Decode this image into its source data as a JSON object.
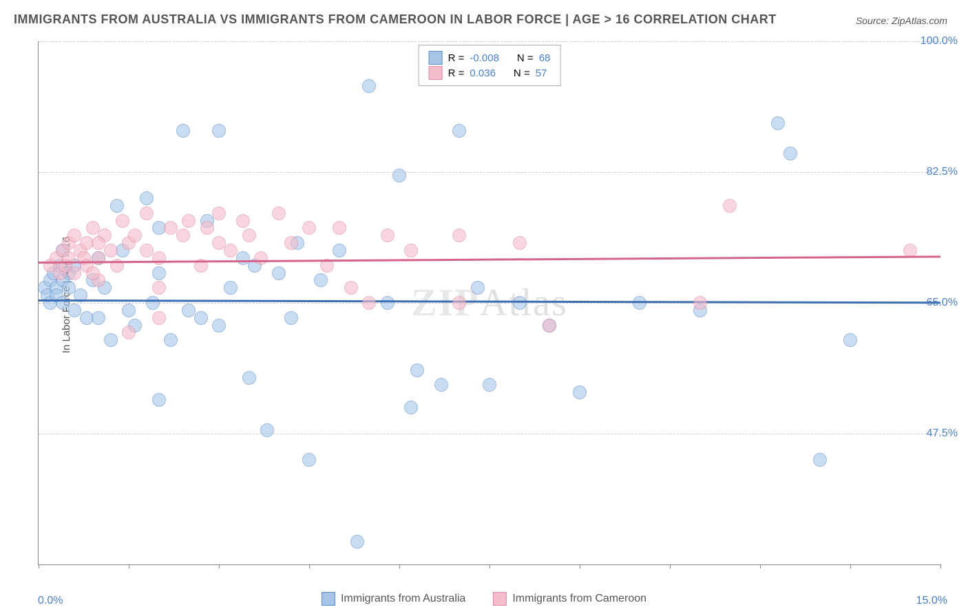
{
  "title": "IMMIGRANTS FROM AUSTRALIA VS IMMIGRANTS FROM CAMEROON IN LABOR FORCE | AGE > 16 CORRELATION CHART",
  "source": "Source: ZipAtlas.com",
  "watermark_a": "ZIP",
  "watermark_b": "Atlas",
  "chart": {
    "type": "scatter",
    "ylabel": "In Labor Force | Age > 16",
    "xlim": [
      0.0,
      15.0
    ],
    "ylim": [
      30.0,
      100.0
    ],
    "x_label_min": "0.0%",
    "x_label_max": "15.0%",
    "y_ticks": [
      47.5,
      65.0,
      82.5,
      100.0
    ],
    "y_tick_labels": [
      "47.5%",
      "65.0%",
      "82.5%",
      "100.0%"
    ],
    "x_tick_positions": [
      0,
      1.5,
      3.0,
      4.5,
      6.0,
      7.5,
      9.0,
      10.5,
      12.0,
      13.5,
      15.0
    ],
    "background_color": "#ffffff",
    "grid_color": "#cccccc",
    "point_radius": 9,
    "point_opacity": 0.6,
    "series": [
      {
        "name": "Immigrants from Australia",
        "fill_color": "#a8c5e8",
        "stroke_color": "#5b8fc9",
        "trend_color": "#3d6fb5",
        "trend_y_start": 65.5,
        "trend_y_end": 65.2,
        "R": "-0.008",
        "N": "68",
        "points": [
          [
            0.1,
            67
          ],
          [
            0.15,
            66
          ],
          [
            0.2,
            68
          ],
          [
            0.2,
            65
          ],
          [
            0.25,
            69
          ],
          [
            0.3,
            67
          ],
          [
            0.3,
            66
          ],
          [
            0.35,
            70
          ],
          [
            0.4,
            68
          ],
          [
            0.4,
            65
          ],
          [
            0.5,
            67
          ],
          [
            0.5,
            69
          ],
          [
            0.6,
            64
          ],
          [
            0.7,
            66
          ],
          [
            0.8,
            63
          ],
          [
            0.9,
            68
          ],
          [
            1.0,
            71
          ],
          [
            1.0,
            63
          ],
          [
            1.1,
            67
          ],
          [
            1.2,
            60
          ],
          [
            1.3,
            78
          ],
          [
            1.4,
            72
          ],
          [
            1.5,
            64
          ],
          [
            1.6,
            62
          ],
          [
            1.8,
            79
          ],
          [
            1.9,
            65
          ],
          [
            2.0,
            69
          ],
          [
            2.0,
            52
          ],
          [
            2.2,
            60
          ],
          [
            2.4,
            88
          ],
          [
            2.5,
            64
          ],
          [
            2.7,
            63
          ],
          [
            2.8,
            76
          ],
          [
            3.0,
            88
          ],
          [
            3.0,
            62
          ],
          [
            3.2,
            67
          ],
          [
            3.4,
            71
          ],
          [
            3.5,
            55
          ],
          [
            3.8,
            48
          ],
          [
            4.0,
            69
          ],
          [
            4.2,
            63
          ],
          [
            4.3,
            73
          ],
          [
            4.5,
            44
          ],
          [
            4.7,
            68
          ],
          [
            5.0,
            72
          ],
          [
            5.3,
            33
          ],
          [
            5.5,
            94
          ],
          [
            5.8,
            65
          ],
          [
            6.0,
            82
          ],
          [
            6.2,
            51
          ],
          [
            6.3,
            56
          ],
          [
            6.7,
            54
          ],
          [
            7.0,
            88
          ],
          [
            7.3,
            67
          ],
          [
            7.5,
            54
          ],
          [
            8.0,
            65
          ],
          [
            8.5,
            62
          ],
          [
            9.0,
            53
          ],
          [
            10.0,
            65
          ],
          [
            11.0,
            64
          ],
          [
            12.3,
            89
          ],
          [
            12.5,
            85
          ],
          [
            13.0,
            44
          ],
          [
            13.5,
            60
          ],
          [
            0.4,
            72
          ],
          [
            0.6,
            70
          ],
          [
            3.6,
            70
          ],
          [
            2.0,
            75
          ]
        ]
      },
      {
        "name": "Immigrants from Cameroon",
        "fill_color": "#f5bccb",
        "stroke_color": "#e08aa3",
        "trend_color": "#d6648a",
        "trend_y_start": 70.5,
        "trend_y_end": 71.3,
        "R": "0.036",
        "N": "57",
        "points": [
          [
            0.2,
            70
          ],
          [
            0.3,
            71
          ],
          [
            0.35,
            69
          ],
          [
            0.4,
            72
          ],
          [
            0.45,
            70
          ],
          [
            0.5,
            73
          ],
          [
            0.5,
            71
          ],
          [
            0.6,
            69
          ],
          [
            0.6,
            74
          ],
          [
            0.7,
            72
          ],
          [
            0.75,
            71
          ],
          [
            0.8,
            73
          ],
          [
            0.8,
            70
          ],
          [
            0.9,
            75
          ],
          [
            1.0,
            71
          ],
          [
            1.0,
            68
          ],
          [
            1.1,
            74
          ],
          [
            1.2,
            72
          ],
          [
            1.3,
            70
          ],
          [
            1.4,
            76
          ],
          [
            1.5,
            73
          ],
          [
            1.5,
            61
          ],
          [
            1.6,
            74
          ],
          [
            1.8,
            72
          ],
          [
            1.8,
            77
          ],
          [
            2.0,
            71
          ],
          [
            2.0,
            63
          ],
          [
            2.2,
            75
          ],
          [
            2.4,
            74
          ],
          [
            2.5,
            76
          ],
          [
            2.7,
            70
          ],
          [
            2.8,
            75
          ],
          [
            3.0,
            77
          ],
          [
            3.2,
            72
          ],
          [
            3.4,
            76
          ],
          [
            3.5,
            74
          ],
          [
            3.7,
            71
          ],
          [
            4.0,
            77
          ],
          [
            4.2,
            73
          ],
          [
            4.5,
            75
          ],
          [
            4.8,
            70
          ],
          [
            5.0,
            75
          ],
          [
            5.2,
            67
          ],
          [
            5.5,
            65
          ],
          [
            5.8,
            74
          ],
          [
            6.2,
            72
          ],
          [
            7.0,
            65
          ],
          [
            7.0,
            74
          ],
          [
            8.0,
            73
          ],
          [
            8.5,
            62
          ],
          [
            11.0,
            65
          ],
          [
            11.5,
            78
          ],
          [
            14.5,
            72
          ],
          [
            2.0,
            67
          ],
          [
            1.0,
            73
          ],
          [
            0.9,
            69
          ],
          [
            3.0,
            73
          ]
        ]
      }
    ]
  },
  "stats_labels": {
    "R": "R =",
    "N": "N ="
  },
  "stat_value_color": "#4a7fc4"
}
